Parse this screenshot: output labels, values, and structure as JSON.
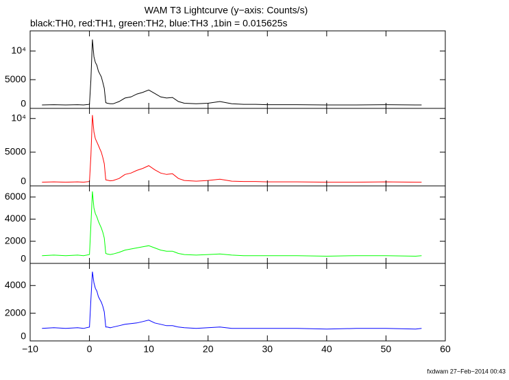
{
  "chart_data": [
    {
      "type": "line",
      "title": "WAM T3 Lightcurve (y−axis: Counts/s)",
      "subtitle": "black:TH0, red:TH1, green:TH2, blue:TH3 ,1bin = 0.015625s",
      "color": "#000000",
      "xlim": [
        -10,
        60
      ],
      "ylim": [
        0,
        13500
      ],
      "yticks": [
        0,
        5000,
        {
          "value": 10000,
          "label": "10⁴"
        }
      ],
      "x": [
        -8,
        -6,
        -4,
        -2,
        -1,
        0,
        0.25,
        0.5,
        0.75,
        1,
        1.25,
        1.5,
        1.75,
        2,
        2.25,
        2.5,
        2.75,
        3,
        3.5,
        4,
        5,
        6,
        7,
        8,
        9,
        10,
        11,
        12,
        13,
        14,
        15,
        16,
        18,
        20,
        22,
        24,
        26,
        28,
        30,
        35,
        40,
        45,
        50,
        55,
        56
      ],
      "values": [
        600,
        650,
        600,
        650,
        600,
        700,
        5000,
        12000,
        9000,
        8000,
        7500,
        6500,
        6000,
        5500,
        4500,
        3500,
        1000,
        900,
        800,
        800,
        1200,
        1800,
        2000,
        2500,
        2800,
        3200,
        2600,
        2000,
        1800,
        1900,
        1200,
        900,
        800,
        900,
        1200,
        800,
        700,
        700,
        650,
        650,
        600,
        600,
        650,
        600,
        600
      ]
    },
    {
      "type": "line",
      "color": "#ff0000",
      "xlim": [
        -10,
        60
      ],
      "ylim": [
        0,
        11500
      ],
      "yticks": [
        0,
        5000,
        {
          "value": 10000,
          "label": "10⁴"
        }
      ],
      "x": [
        -8,
        -6,
        -4,
        -2,
        -1,
        0,
        0.25,
        0.5,
        0.75,
        1,
        1.25,
        1.5,
        1.75,
        2,
        2.25,
        2.5,
        2.75,
        3,
        3.5,
        4,
        5,
        6,
        7,
        8,
        9,
        10,
        11,
        12,
        13,
        14,
        15,
        16,
        18,
        20,
        22,
        24,
        26,
        28,
        30,
        35,
        40,
        45,
        50,
        55,
        56
      ],
      "values": [
        550,
        600,
        550,
        600,
        550,
        650,
        4500,
        10500,
        8000,
        7000,
        6500,
        6000,
        5500,
        5000,
        4200,
        3300,
        900,
        850,
        750,
        800,
        1100,
        1700,
        1900,
        2300,
        2600,
        3000,
        2400,
        1900,
        1700,
        1800,
        1100,
        800,
        700,
        800,
        1000,
        700,
        650,
        650,
        600,
        600,
        550,
        550,
        600,
        550,
        550
      ]
    },
    {
      "type": "line",
      "color": "#00ff00",
      "xlim": [
        -10,
        60
      ],
      "ylim": [
        0,
        7000
      ],
      "yticks": [
        0,
        2000,
        4000,
        6000
      ],
      "x": [
        -8,
        -6,
        -4,
        -2,
        -1,
        0,
        0.25,
        0.5,
        0.75,
        1,
        1.25,
        1.5,
        1.75,
        2,
        2.25,
        2.5,
        2.75,
        3,
        3.5,
        4,
        5,
        6,
        7,
        8,
        9,
        10,
        11,
        12,
        13,
        14,
        15,
        16,
        18,
        20,
        22,
        24,
        26,
        28,
        30,
        35,
        40,
        45,
        50,
        55,
        56
      ],
      "values": [
        700,
        750,
        700,
        750,
        700,
        800,
        3500,
        6500,
        5000,
        4500,
        4200,
        3800,
        3500,
        3200,
        2800,
        2300,
        900,
        850,
        800,
        850,
        1000,
        1200,
        1300,
        1400,
        1500,
        1600,
        1400,
        1200,
        1100,
        1100,
        900,
        800,
        750,
        800,
        850,
        750,
        700,
        700,
        700,
        700,
        650,
        700,
        700,
        650,
        700
      ]
    },
    {
      "type": "line",
      "color": "#0000ff",
      "xlim": [
        -10,
        60
      ],
      "ylim": [
        0,
        5600
      ],
      "yticks": [
        0,
        2000,
        4000
      ],
      "x": [
        -8,
        -6,
        -4,
        -2,
        -1,
        0,
        0.25,
        0.5,
        0.75,
        1,
        1.25,
        1.5,
        1.75,
        2,
        2.25,
        2.5,
        2.75,
        3,
        3.5,
        4,
        5,
        6,
        7,
        8,
        9,
        10,
        11,
        12,
        13,
        14,
        15,
        16,
        18,
        20,
        22,
        24,
        26,
        28,
        30,
        35,
        40,
        45,
        50,
        55,
        56
      ],
      "values": [
        900,
        950,
        900,
        950,
        900,
        1000,
        3000,
        5000,
        4200,
        3800,
        3600,
        3200,
        3000,
        2800,
        2500,
        2100,
        1000,
        1000,
        950,
        1000,
        1100,
        1200,
        1250,
        1300,
        1400,
        1500,
        1300,
        1200,
        1100,
        1100,
        1000,
        950,
        900,
        950,
        1000,
        900,
        900,
        900,
        900,
        900,
        850,
        900,
        900,
        850,
        900
      ],
      "xticks": [
        {
          "value": -10,
          "label": "−10"
        },
        0,
        10,
        20,
        30,
        40,
        50,
        60
      ]
    }
  ],
  "footer": "fxdwam 27−Feb−2014 00:43"
}
